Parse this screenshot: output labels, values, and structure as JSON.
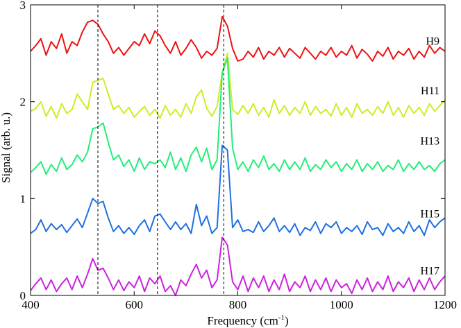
{
  "chart_data": {
    "type": "line",
    "title": "",
    "xlabel": "Frequency (cm",
    "xlabel_sup": "-1",
    "xlabel_end": ")",
    "ylabel": "Signal (arb. u.)",
    "xlim": [
      400,
      1200
    ],
    "ylim": [
      0,
      3
    ],
    "xticks": [
      400,
      600,
      800,
      1000,
      1200
    ],
    "xtick_labels": [
      "400",
      "600",
      "800",
      "1000",
      "1200"
    ],
    "yticks": [
      0,
      1,
      2,
      3
    ],
    "ytick_labels": [
      "0",
      "1",
      "2",
      "3"
    ],
    "vlines": [
      530,
      645,
      773
    ],
    "vline_style": "dashed",
    "grid": false,
    "series": [
      {
        "name": "H9",
        "color": "#ee1111",
        "x": [
          400,
          410,
          420,
          430,
          440,
          450,
          460,
          470,
          480,
          490,
          500,
          510,
          520,
          530,
          540,
          550,
          560,
          570,
          580,
          590,
          600,
          610,
          620,
          630,
          640,
          650,
          660,
          670,
          680,
          690,
          700,
          710,
          720,
          730,
          740,
          750,
          760,
          770,
          780,
          790,
          800,
          810,
          820,
          830,
          840,
          850,
          860,
          870,
          880,
          890,
          900,
          910,
          920,
          930,
          940,
          950,
          960,
          970,
          980,
          990,
          1000,
          1010,
          1020,
          1030,
          1040,
          1050,
          1060,
          1070,
          1080,
          1090,
          1100,
          1110,
          1120,
          1130,
          1140,
          1150,
          1160,
          1170,
          1180,
          1190,
          1200
        ],
        "values": [
          2.52,
          2.58,
          2.65,
          2.48,
          2.62,
          2.55,
          2.7,
          2.5,
          2.62,
          2.58,
          2.72,
          2.82,
          2.84,
          2.8,
          2.7,
          2.62,
          2.5,
          2.56,
          2.48,
          2.55,
          2.62,
          2.58,
          2.7,
          2.6,
          2.73,
          2.68,
          2.58,
          2.5,
          2.62,
          2.48,
          2.55,
          2.64,
          2.56,
          2.45,
          2.52,
          2.48,
          2.55,
          2.88,
          2.78,
          2.55,
          2.42,
          2.44,
          2.52,
          2.46,
          2.56,
          2.44,
          2.52,
          2.48,
          2.56,
          2.46,
          2.55,
          2.5,
          2.45,
          2.56,
          2.5,
          2.44,
          2.52,
          2.48,
          2.56,
          2.46,
          2.52,
          2.48,
          2.58,
          2.45,
          2.54,
          2.49,
          2.42,
          2.52,
          2.47,
          2.56,
          2.44,
          2.52,
          2.48,
          2.55,
          2.44,
          2.52,
          2.46,
          2.58,
          2.5,
          2.56,
          2.52
        ]
      },
      {
        "name": "H11",
        "color": "#ccee22",
        "x": [
          400,
          410,
          420,
          430,
          440,
          450,
          460,
          470,
          480,
          490,
          500,
          510,
          520,
          530,
          540,
          550,
          560,
          570,
          580,
          590,
          600,
          610,
          620,
          630,
          640,
          650,
          660,
          670,
          680,
          690,
          700,
          710,
          720,
          730,
          740,
          750,
          760,
          770,
          780,
          790,
          800,
          810,
          820,
          830,
          840,
          850,
          860,
          870,
          880,
          890,
          900,
          910,
          920,
          930,
          940,
          950,
          960,
          970,
          980,
          990,
          1000,
          1010,
          1020,
          1030,
          1040,
          1050,
          1060,
          1070,
          1080,
          1090,
          1100,
          1110,
          1120,
          1130,
          1140,
          1150,
          1160,
          1170,
          1180,
          1190,
          1200
        ],
        "values": [
          1.9,
          1.93,
          2.0,
          1.85,
          1.95,
          1.83,
          1.98,
          1.88,
          1.92,
          2.08,
          2.0,
          1.92,
          2.2,
          2.22,
          2.24,
          2.08,
          1.92,
          1.96,
          1.88,
          1.94,
          1.84,
          1.9,
          1.95,
          1.86,
          1.92,
          1.83,
          1.96,
          1.86,
          1.92,
          1.84,
          1.98,
          1.88,
          2.05,
          2.12,
          1.93,
          1.85,
          1.95,
          2.3,
          2.5,
          1.92,
          1.87,
          1.96,
          1.88,
          1.98,
          1.86,
          1.94,
          1.84,
          2.02,
          1.88,
          1.96,
          1.86,
          1.94,
          1.88,
          2.0,
          1.86,
          1.95,
          1.88,
          1.92,
          1.85,
          1.98,
          1.86,
          1.94,
          1.84,
          1.98,
          1.88,
          1.92,
          1.86,
          1.95,
          1.88,
          2.0,
          1.86,
          1.94,
          1.84,
          1.96,
          1.88,
          1.94,
          1.86,
          1.98,
          1.9,
          1.96,
          2.02
        ]
      },
      {
        "name": "H13",
        "color": "#22ee77",
        "x": [
          400,
          410,
          420,
          430,
          440,
          450,
          460,
          470,
          480,
          490,
          500,
          510,
          520,
          530,
          540,
          550,
          560,
          570,
          580,
          590,
          600,
          610,
          620,
          630,
          640,
          650,
          660,
          670,
          680,
          690,
          700,
          710,
          720,
          730,
          740,
          750,
          760,
          770,
          780,
          790,
          800,
          810,
          820,
          830,
          840,
          850,
          860,
          870,
          880,
          890,
          900,
          910,
          920,
          930,
          940,
          950,
          960,
          970,
          980,
          990,
          1000,
          1010,
          1020,
          1030,
          1040,
          1050,
          1060,
          1070,
          1080,
          1090,
          1100,
          1110,
          1120,
          1130,
          1140,
          1150,
          1160,
          1170,
          1180,
          1190,
          1200
        ],
        "values": [
          1.27,
          1.32,
          1.38,
          1.25,
          1.35,
          1.28,
          1.42,
          1.3,
          1.35,
          1.45,
          1.38,
          1.48,
          1.72,
          1.74,
          1.78,
          1.58,
          1.4,
          1.45,
          1.33,
          1.4,
          1.28,
          1.42,
          1.3,
          1.38,
          1.36,
          1.4,
          1.32,
          1.48,
          1.3,
          1.42,
          1.28,
          1.45,
          1.53,
          1.38,
          1.52,
          1.3,
          1.4,
          2.3,
          2.45,
          1.52,
          1.3,
          1.38,
          1.28,
          1.4,
          1.32,
          1.44,
          1.3,
          1.36,
          1.28,
          1.4,
          1.3,
          1.38,
          1.3,
          1.42,
          1.28,
          1.35,
          1.3,
          1.4,
          1.32,
          1.38,
          1.28,
          1.36,
          1.3,
          1.4,
          1.28,
          1.36,
          1.3,
          1.38,
          1.28,
          1.34,
          1.3,
          1.4,
          1.28,
          1.36,
          1.3,
          1.38,
          1.3,
          1.34,
          1.28,
          1.36,
          1.4
        ]
      },
      {
        "name": "H15",
        "color": "#1f6fe0",
        "x": [
          400,
          410,
          420,
          430,
          440,
          450,
          460,
          470,
          480,
          490,
          500,
          510,
          520,
          530,
          540,
          550,
          560,
          570,
          580,
          590,
          600,
          610,
          620,
          630,
          640,
          650,
          660,
          670,
          680,
          690,
          700,
          710,
          720,
          730,
          740,
          750,
          760,
          770,
          780,
          790,
          800,
          810,
          820,
          830,
          840,
          850,
          860,
          870,
          880,
          890,
          900,
          910,
          920,
          930,
          940,
          950,
          960,
          970,
          980,
          990,
          1000,
          1010,
          1020,
          1030,
          1040,
          1050,
          1060,
          1070,
          1080,
          1090,
          1100,
          1110,
          1120,
          1130,
          1140,
          1150,
          1160,
          1170,
          1180,
          1190,
          1200
        ],
        "values": [
          0.64,
          0.68,
          0.78,
          0.66,
          0.74,
          0.68,
          0.73,
          0.65,
          0.72,
          0.79,
          0.7,
          0.85,
          1.0,
          0.95,
          0.97,
          0.8,
          0.66,
          0.72,
          0.64,
          0.7,
          0.63,
          0.72,
          0.78,
          0.66,
          0.82,
          0.84,
          0.76,
          0.68,
          0.76,
          0.68,
          0.74,
          0.64,
          0.94,
          0.72,
          0.82,
          0.64,
          0.7,
          1.55,
          1.5,
          0.7,
          0.78,
          0.66,
          0.68,
          0.65,
          0.76,
          0.66,
          0.72,
          0.8,
          0.66,
          0.72,
          0.65,
          0.74,
          0.62,
          0.7,
          0.67,
          0.76,
          0.64,
          0.74,
          0.7,
          0.76,
          0.64,
          0.7,
          0.66,
          0.72,
          0.63,
          0.76,
          0.68,
          0.7,
          0.62,
          0.74,
          0.66,
          0.7,
          0.64,
          0.76,
          0.66,
          0.72,
          0.62,
          0.78,
          0.7,
          0.76,
          0.8
        ]
      },
      {
        "name": "H17",
        "color": "#cc22dd",
        "x": [
          400,
          410,
          420,
          430,
          440,
          450,
          460,
          470,
          480,
          490,
          500,
          510,
          520,
          530,
          540,
          550,
          560,
          570,
          580,
          590,
          600,
          610,
          620,
          630,
          640,
          650,
          660,
          670,
          680,
          690,
          700,
          710,
          720,
          730,
          740,
          750,
          760,
          770,
          780,
          790,
          800,
          810,
          820,
          830,
          840,
          850,
          860,
          870,
          880,
          890,
          900,
          910,
          920,
          930,
          940,
          950,
          960,
          970,
          980,
          990,
          1000,
          1010,
          1020,
          1030,
          1040,
          1050,
          1060,
          1070,
          1080,
          1090,
          1100,
          1110,
          1120,
          1130,
          1140,
          1150,
          1160,
          1170,
          1180,
          1190,
          1200
        ],
        "values": [
          0.05,
          0.12,
          0.18,
          0.06,
          0.16,
          0.04,
          0.12,
          0.18,
          0.06,
          0.2,
          0.08,
          0.22,
          0.38,
          0.26,
          0.28,
          0.18,
          0.06,
          0.16,
          0.05,
          0.14,
          0.08,
          0.2,
          0.04,
          0.18,
          0.12,
          0.2,
          0.04,
          0.1,
          0.0,
          0.16,
          0.1,
          0.22,
          0.32,
          0.18,
          0.26,
          0.08,
          0.16,
          0.6,
          0.52,
          0.14,
          0.06,
          0.2,
          0.04,
          0.18,
          0.08,
          0.2,
          0.04,
          0.16,
          0.06,
          0.22,
          0.04,
          0.14,
          0.08,
          0.2,
          0.04,
          0.16,
          0.06,
          0.18,
          0.04,
          0.16,
          0.08,
          0.12,
          0.02,
          0.16,
          0.06,
          0.18,
          0.04,
          0.14,
          0.06,
          0.2,
          0.04,
          0.14,
          0.08,
          0.18,
          0.04,
          0.16,
          0.06,
          0.18,
          0.06,
          0.14,
          0.2
        ]
      }
    ],
    "series_labels": [
      {
        "name": "H9",
        "value": 2.63
      },
      {
        "name": "H11",
        "value": 2.12
      },
      {
        "name": "H13",
        "value": 1.6
      },
      {
        "name": "H15",
        "value": 0.85
      },
      {
        "name": "H17",
        "value": 0.26
      }
    ]
  }
}
